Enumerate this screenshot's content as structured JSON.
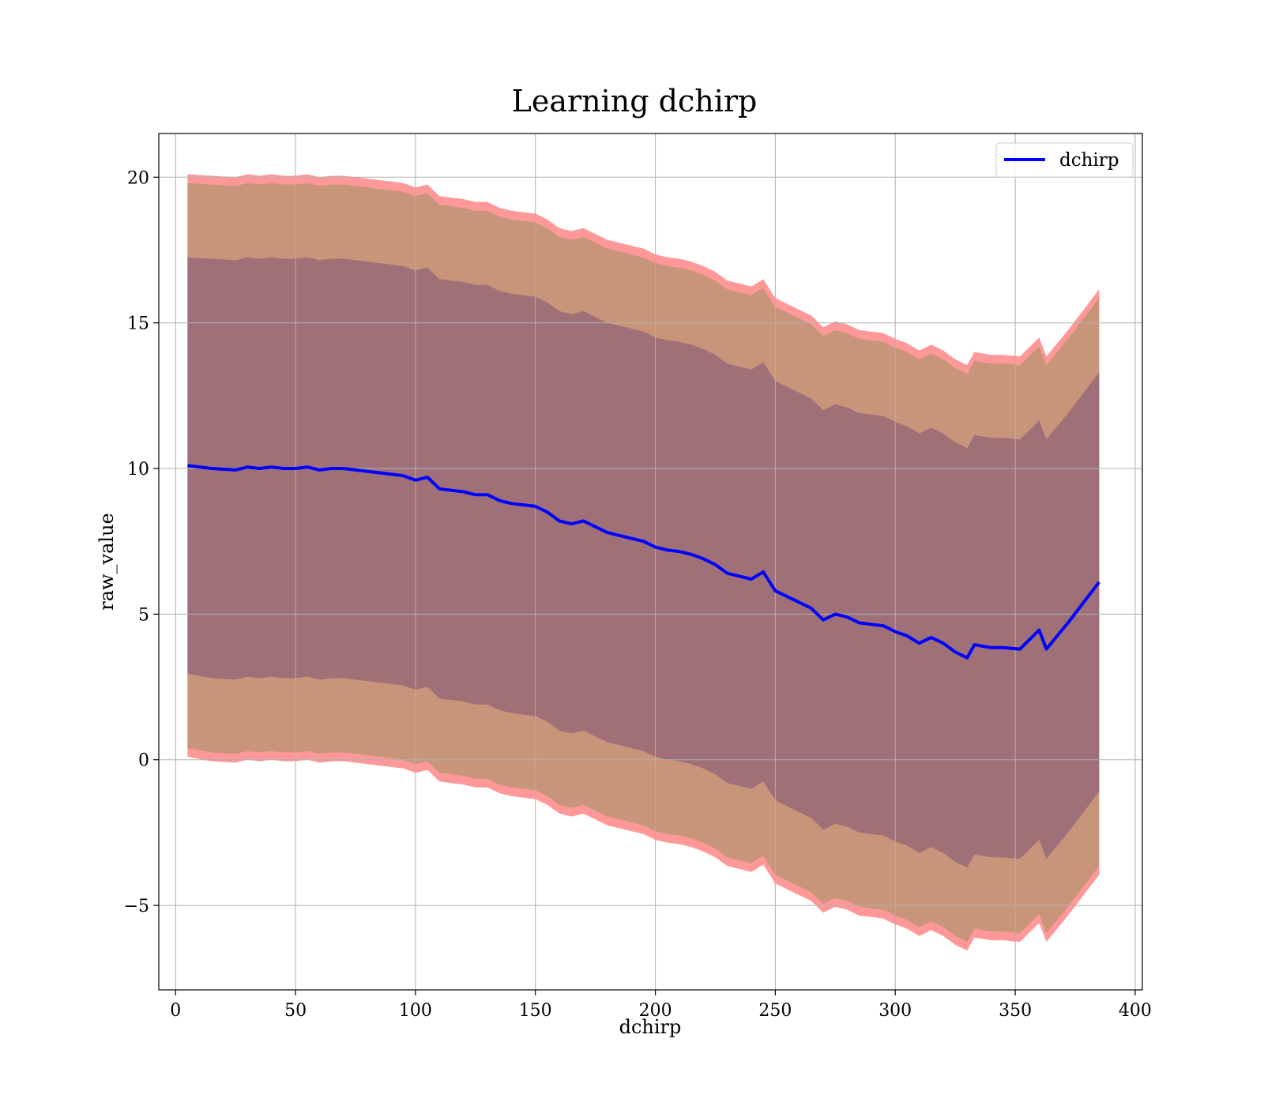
{
  "chart_data": {
    "type": "line",
    "title": "Learning dchirp",
    "xlabel": "dchirp",
    "ylabel": "raw_value",
    "xlim": [
      -7,
      403
    ],
    "ylim": [
      -7.9,
      21.5
    ],
    "x_ticks": [
      0,
      50,
      100,
      150,
      200,
      250,
      300,
      350,
      400
    ],
    "x_tick_labels": [
      "0",
      "50",
      "100",
      "150",
      "200",
      "250",
      "300",
      "350",
      "400"
    ],
    "y_ticks": [
      -5,
      0,
      5,
      10,
      15,
      20
    ],
    "y_tick_labels": [
      "−5",
      "0",
      "5",
      "10",
      "15",
      "20"
    ],
    "grid": true,
    "legend": {
      "position": "top-right",
      "entries": [
        "dchirp"
      ]
    },
    "colors": {
      "line": "#0000ff",
      "outer_band": "#ff9999",
      "middle_band": "#c9957a",
      "inner_band": "#a07079",
      "grid": "#b0b0b0"
    },
    "series": [
      {
        "name": "dchirp",
        "x": [
          5,
          15,
          25,
          30,
          35,
          40,
          45,
          50,
          55,
          60,
          65,
          70,
          75,
          80,
          85,
          90,
          95,
          100,
          105,
          110,
          115,
          120,
          125,
          130,
          135,
          140,
          145,
          150,
          155,
          160,
          165,
          170,
          175,
          180,
          185,
          190,
          195,
          200,
          205,
          210,
          215,
          220,
          225,
          230,
          235,
          240,
          245,
          250,
          255,
          260,
          265,
          270,
          275,
          280,
          285,
          290,
          295,
          300,
          305,
          310,
          315,
          320,
          325,
          330,
          333,
          340,
          345,
          352,
          360,
          363,
          372,
          385
        ],
        "y": [
          10.1,
          10.0,
          9.95,
          10.05,
          10.0,
          10.05,
          10.0,
          10.0,
          10.05,
          9.95,
          10.0,
          10.0,
          9.95,
          9.9,
          9.85,
          9.8,
          9.75,
          9.6,
          9.7,
          9.3,
          9.25,
          9.2,
          9.1,
          9.1,
          8.9,
          8.8,
          8.75,
          8.7,
          8.5,
          8.2,
          8.1,
          8.2,
          8.0,
          7.8,
          7.7,
          7.6,
          7.5,
          7.3,
          7.2,
          7.15,
          7.05,
          6.9,
          6.7,
          6.4,
          6.3,
          6.2,
          6.45,
          5.8,
          5.6,
          5.4,
          5.2,
          4.8,
          5.0,
          4.9,
          4.7,
          4.65,
          4.6,
          4.4,
          4.25,
          4.0,
          4.2,
          4.0,
          3.7,
          3.5,
          3.95,
          3.85,
          3.85,
          3.8,
          4.45,
          3.8,
          4.7,
          6.1
        ]
      }
    ],
    "bands": [
      {
        "x": [
          5,
          15,
          25,
          30,
          35,
          40,
          45,
          50,
          55,
          60,
          65,
          70,
          75,
          80,
          85,
          90,
          95,
          100,
          105,
          110,
          115,
          120,
          125,
          130,
          135,
          140,
          145,
          150,
          155,
          160,
          165,
          170,
          175,
          180,
          185,
          190,
          195,
          200,
          205,
          210,
          215,
          220,
          225,
          230,
          235,
          240,
          245,
          250,
          255,
          260,
          265,
          270,
          275,
          280,
          285,
          290,
          295,
          300,
          305,
          310,
          315,
          320,
          325,
          330,
          333,
          340,
          345,
          352,
          360,
          363,
          372,
          385
        ],
        "lower": [
          0.1,
          -0.05,
          -0.1,
          0.0,
          -0.05,
          0.0,
          -0.05,
          -0.05,
          0.0,
          -0.1,
          -0.05,
          -0.05,
          -0.1,
          -0.15,
          -0.2,
          -0.25,
          -0.3,
          -0.45,
          -0.35,
          -0.75,
          -0.8,
          -0.85,
          -0.95,
          -0.95,
          -1.15,
          -1.25,
          -1.3,
          -1.35,
          -1.55,
          -1.85,
          -1.95,
          -1.85,
          -2.05,
          -2.25,
          -2.35,
          -2.45,
          -2.55,
          -2.75,
          -2.85,
          -2.9,
          -3.0,
          -3.15,
          -3.35,
          -3.65,
          -3.75,
          -3.85,
          -3.6,
          -4.25,
          -4.45,
          -4.65,
          -4.85,
          -5.25,
          -5.05,
          -5.15,
          -5.35,
          -5.4,
          -5.45,
          -5.65,
          -5.8,
          -6.05,
          -5.85,
          -6.05,
          -6.35,
          -6.55,
          -6.1,
          -6.2,
          -6.2,
          -6.25,
          -5.6,
          -6.25,
          -5.35,
          -3.95
        ],
        "upper": [
          20.1,
          20.05,
          20.0,
          20.1,
          20.05,
          20.1,
          20.05,
          20.05,
          20.1,
          20.0,
          20.05,
          20.05,
          20.0,
          19.95,
          19.9,
          19.85,
          19.8,
          19.65,
          19.75,
          19.35,
          19.3,
          19.25,
          19.15,
          19.15,
          18.95,
          18.85,
          18.8,
          18.75,
          18.55,
          18.25,
          18.15,
          18.25,
          18.05,
          17.85,
          17.75,
          17.65,
          17.55,
          17.35,
          17.25,
          17.2,
          17.1,
          16.95,
          16.75,
          16.45,
          16.35,
          16.25,
          16.5,
          15.85,
          15.65,
          15.45,
          15.25,
          14.85,
          15.05,
          14.95,
          14.75,
          14.7,
          14.65,
          14.45,
          14.3,
          14.05,
          14.25,
          14.05,
          13.75,
          13.55,
          14.0,
          13.9,
          13.9,
          13.85,
          14.5,
          13.85,
          14.75,
          16.15
        ],
        "color": "#ff9999"
      },
      {
        "x": [
          5,
          15,
          25,
          30,
          35,
          40,
          45,
          50,
          55,
          60,
          65,
          70,
          75,
          80,
          85,
          90,
          95,
          100,
          105,
          110,
          115,
          120,
          125,
          130,
          135,
          140,
          145,
          150,
          155,
          160,
          165,
          170,
          175,
          180,
          185,
          190,
          195,
          200,
          205,
          210,
          215,
          220,
          225,
          230,
          235,
          240,
          245,
          250,
          255,
          260,
          265,
          270,
          275,
          280,
          285,
          290,
          295,
          300,
          305,
          310,
          315,
          320,
          325,
          330,
          333,
          340,
          345,
          352,
          360,
          363,
          372,
          385
        ],
        "lower": [
          0.4,
          0.25,
          0.2,
          0.3,
          0.25,
          0.3,
          0.25,
          0.25,
          0.3,
          0.2,
          0.25,
          0.25,
          0.2,
          0.15,
          0.1,
          0.05,
          0.0,
          -0.15,
          -0.05,
          -0.45,
          -0.5,
          -0.55,
          -0.65,
          -0.65,
          -0.85,
          -0.95,
          -1.0,
          -1.05,
          -1.25,
          -1.55,
          -1.65,
          -1.55,
          -1.75,
          -1.95,
          -2.05,
          -2.15,
          -2.25,
          -2.45,
          -2.55,
          -2.6,
          -2.7,
          -2.85,
          -3.05,
          -3.35,
          -3.45,
          -3.55,
          -3.3,
          -3.95,
          -4.15,
          -4.35,
          -4.55,
          -4.95,
          -4.75,
          -4.85,
          -5.05,
          -5.1,
          -5.15,
          -5.35,
          -5.5,
          -5.75,
          -5.55,
          -5.75,
          -6.05,
          -6.25,
          -5.8,
          -5.9,
          -5.9,
          -5.95,
          -5.3,
          -5.95,
          -5.05,
          -3.65
        ],
        "upper": [
          19.8,
          19.75,
          19.7,
          19.8,
          19.75,
          19.8,
          19.75,
          19.75,
          19.8,
          19.7,
          19.75,
          19.75,
          19.7,
          19.65,
          19.6,
          19.55,
          19.5,
          19.35,
          19.45,
          19.05,
          19.0,
          18.95,
          18.85,
          18.85,
          18.65,
          18.55,
          18.5,
          18.45,
          18.25,
          17.95,
          17.85,
          17.95,
          17.75,
          17.55,
          17.45,
          17.35,
          17.25,
          17.05,
          16.95,
          16.9,
          16.8,
          16.65,
          16.45,
          16.15,
          16.05,
          15.95,
          16.2,
          15.55,
          15.35,
          15.15,
          14.95,
          14.55,
          14.75,
          14.65,
          14.45,
          14.4,
          14.35,
          14.15,
          14.0,
          13.75,
          13.95,
          13.75,
          13.45,
          13.25,
          13.7,
          13.6,
          13.6,
          13.55,
          14.2,
          13.55,
          14.45,
          15.85
        ],
        "color": "#c9957a"
      },
      {
        "x": [
          5,
          15,
          25,
          30,
          35,
          40,
          45,
          50,
          55,
          60,
          65,
          70,
          75,
          80,
          85,
          90,
          95,
          100,
          105,
          110,
          115,
          120,
          125,
          130,
          135,
          140,
          145,
          150,
          155,
          160,
          165,
          170,
          175,
          180,
          185,
          190,
          195,
          200,
          205,
          210,
          215,
          220,
          225,
          230,
          235,
          240,
          245,
          250,
          255,
          260,
          265,
          270,
          275,
          280,
          285,
          290,
          295,
          300,
          305,
          310,
          315,
          320,
          325,
          330,
          333,
          340,
          345,
          352,
          360,
          363,
          372,
          385
        ],
        "lower": [
          2.95,
          2.8,
          2.75,
          2.85,
          2.8,
          2.85,
          2.8,
          2.8,
          2.85,
          2.75,
          2.8,
          2.8,
          2.75,
          2.7,
          2.65,
          2.6,
          2.55,
          2.4,
          2.5,
          2.1,
          2.05,
          2.0,
          1.9,
          1.9,
          1.7,
          1.6,
          1.55,
          1.5,
          1.3,
          1.0,
          0.9,
          1.0,
          0.8,
          0.6,
          0.5,
          0.4,
          0.3,
          0.1,
          0.0,
          -0.05,
          -0.15,
          -0.3,
          -0.5,
          -0.8,
          -0.9,
          -1.0,
          -0.75,
          -1.4,
          -1.6,
          -1.8,
          -2.0,
          -2.4,
          -2.2,
          -2.3,
          -2.5,
          -2.55,
          -2.6,
          -2.8,
          -2.95,
          -3.2,
          -3.0,
          -3.2,
          -3.5,
          -3.7,
          -3.25,
          -3.35,
          -3.35,
          -3.4,
          -2.75,
          -3.4,
          -2.5,
          -1.1
        ],
        "upper": [
          17.25,
          17.2,
          17.15,
          17.25,
          17.2,
          17.25,
          17.2,
          17.2,
          17.25,
          17.15,
          17.2,
          17.2,
          17.15,
          17.1,
          17.05,
          17.0,
          16.95,
          16.8,
          16.9,
          16.5,
          16.45,
          16.4,
          16.3,
          16.3,
          16.1,
          16.0,
          15.95,
          15.9,
          15.7,
          15.4,
          15.3,
          15.4,
          15.2,
          15.0,
          14.9,
          14.8,
          14.7,
          14.5,
          14.4,
          14.35,
          14.25,
          14.1,
          13.9,
          13.6,
          13.5,
          13.4,
          13.65,
          13.0,
          12.8,
          12.6,
          12.4,
          12.0,
          12.2,
          12.1,
          11.9,
          11.85,
          11.8,
          11.6,
          11.45,
          11.2,
          11.4,
          11.2,
          10.9,
          10.7,
          11.15,
          11.05,
          11.05,
          11.0,
          11.65,
          11.0,
          11.9,
          13.3
        ],
        "color": "#a07079"
      }
    ]
  }
}
